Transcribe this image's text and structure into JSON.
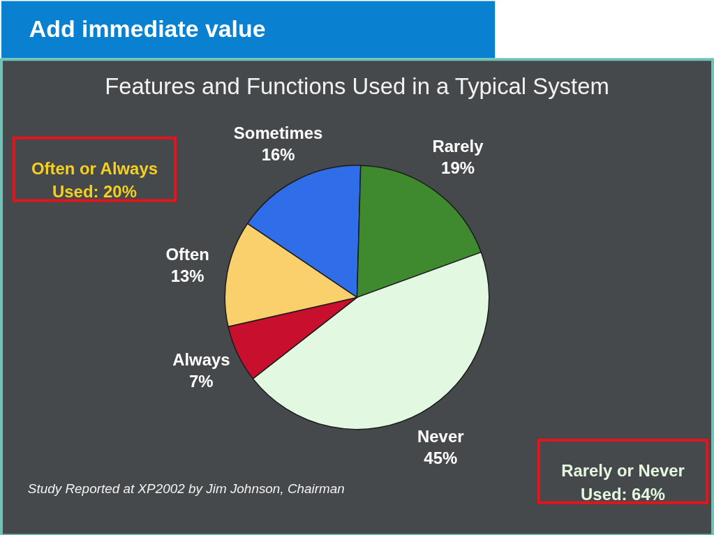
{
  "chart_data": {
    "type": "pie",
    "title": "Add immediate value",
    "subtitle": "Features and Functions Used in a Typical System",
    "categories": [
      "Sometimes",
      "Rarely",
      "Never",
      "Always",
      "Often"
    ],
    "values": [
      16,
      19,
      45,
      7,
      13
    ],
    "value_labels": [
      "16%",
      "19%",
      "45%",
      "7%",
      "13%"
    ],
    "colors": [
      "#2f6ee8",
      "#3f8a2e",
      "#e2f8e0",
      "#c8102e",
      "#f9d06c"
    ],
    "annotations": [
      "Often or Always\nUsed: 20%",
      "Rarely or Never\nUsed: 64%",
      "Study Reported at XP2002 by Jim Johnson, Chairman"
    ]
  }
}
